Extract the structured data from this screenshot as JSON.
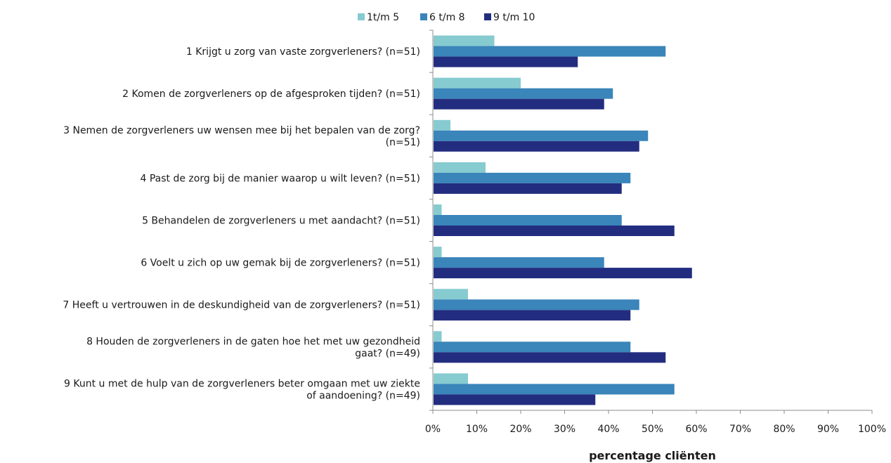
{
  "chart_data": {
    "type": "bar",
    "orientation": "horizontal",
    "categories": [
      [
        "1 Krijgt u zorg van vaste zorgverleners? (n=51)"
      ],
      [
        "2 Komen de zorgverleners op de afgesproken tijden? (n=51)"
      ],
      [
        "3 Nemen de zorgverleners uw wensen mee bij het bepalen van de zorg?",
        "(n=51)"
      ],
      [
        "4 Past de zorg bij de manier waarop u wilt leven? (n=51)"
      ],
      [
        "5 Behandelen de zorgverleners u met aandacht? (n=51)"
      ],
      [
        "6 Voelt u zich op uw gemak bij de zorgverleners? (n=51)"
      ],
      [
        "7 Heeft u vertrouwen in de deskundigheid van de zorgverleners? (n=51)"
      ],
      [
        "8 Houden de zorgverleners in de gaten hoe het met uw gezondheid",
        "gaat? (n=49)"
      ],
      [
        "9 Kunt u met de hulp van de zorgverleners beter omgaan met uw ziekte",
        "of aandoening? (n=49)"
      ]
    ],
    "series": [
      {
        "name": "1t/m 5",
        "color": "#86cbd0",
        "values": [
          14,
          20,
          4,
          12,
          2,
          2,
          8,
          2,
          8
        ]
      },
      {
        "name": "6 t/m 8",
        "color": "#3a85ba",
        "values": [
          53,
          41,
          49,
          45,
          43,
          39,
          47,
          45,
          55
        ]
      },
      {
        "name": "9 t/m 10",
        "color": "#232d7f",
        "values": [
          33,
          39,
          47,
          43,
          55,
          59,
          45,
          53,
          37
        ]
      }
    ],
    "xlim": [
      0,
      100
    ],
    "xticks": [
      "0%",
      "10%",
      "20%",
      "30%",
      "40%",
      "50%",
      "60%",
      "70%",
      "80%",
      "90%",
      "100%"
    ],
    "xlabel": "percentage cliënten",
    "ylabel": "",
    "title": "",
    "grid": false,
    "legend_position": "top"
  }
}
